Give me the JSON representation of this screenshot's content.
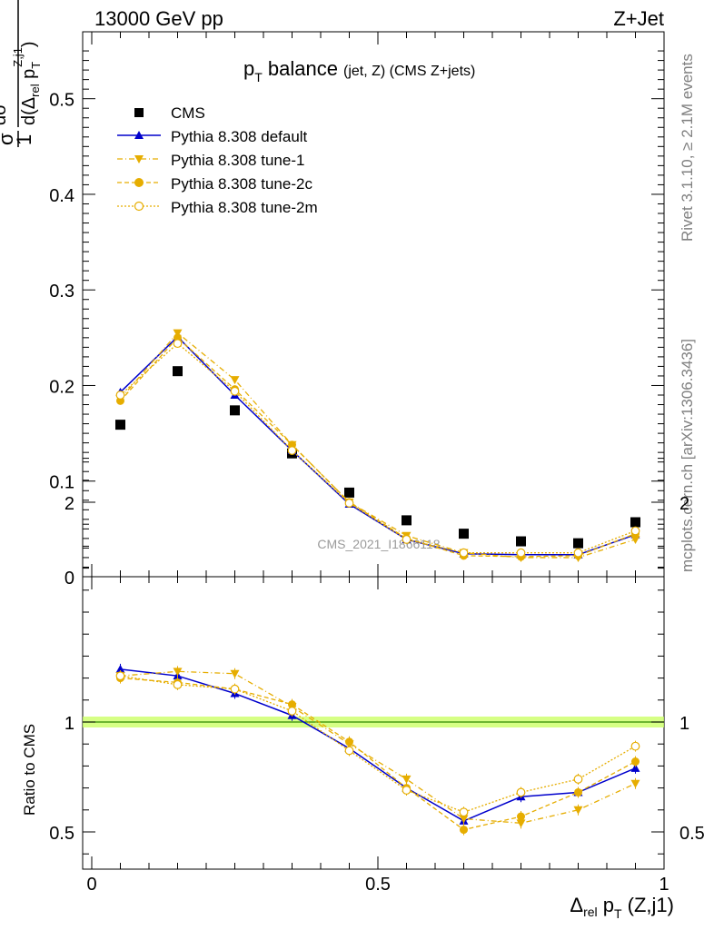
{
  "header": {
    "energy_label": "13000 GeV pp",
    "process_label": "Z+Jet"
  },
  "side_labels": {
    "rivet": "Rivet 3.1.10, ≥ 2.1M events",
    "mcplots": "mcplots.cern.ch [arXiv:1306.3436]"
  },
  "watermark": "CMS_2021_I1866118",
  "colors": {
    "data": "#000000",
    "default": "#0000cc",
    "tune": "#e6ad00",
    "band": "#ccff66",
    "refline": "#2e8b00"
  },
  "chart_data": [
    {
      "type": "scatter",
      "panel": "main",
      "title": "p_T balance (jet, Z) (CMS Z+jets)",
      "title_main": "p",
      "title_sub": "T",
      "title_rest": " balance",
      "title_small": "(jet, Z) (CMS Z+jets)",
      "xlabel": "Δrel pT (Z,j1)",
      "ylabel": "1/σ dσ/d(Δrel pT Z,j1)",
      "xlim": [
        0,
        1
      ],
      "ylim": [
        0,
        0.57
      ],
      "y_ticks": [
        "0",
        "0.1",
        "0.2",
        "0.3",
        "0.4",
        "0.5"
      ],
      "x": [
        0.05,
        0.15,
        0.25,
        0.35,
        0.45,
        0.55,
        0.65,
        0.75,
        0.85,
        0.95
      ],
      "legend_position": "top-left",
      "series": [
        {
          "name": "CMS",
          "key": "data",
          "marker": "square",
          "values": [
            0.159,
            0.215,
            0.174,
            0.129,
            0.088,
            0.059,
            0.045,
            0.037,
            0.035,
            0.057
          ]
        },
        {
          "name": "Pythia 8.308 default",
          "key": "default",
          "marker": "triangle-up",
          "line": "solid",
          "values": [
            0.193,
            0.251,
            0.19,
            0.132,
            0.076,
            0.039,
            0.024,
            0.023,
            0.023,
            0.044
          ]
        },
        {
          "name": "Pythia 8.308 tune-1",
          "key": "tune1",
          "marker": "triangle-down",
          "line": "dashdot",
          "values": [
            0.186,
            0.255,
            0.206,
            0.138,
            0.078,
            0.043,
            0.025,
            0.02,
            0.02,
            0.039
          ]
        },
        {
          "name": "Pythia 8.308 tune-2c",
          "key": "tune2c",
          "marker": "circle",
          "line": "dashed",
          "values": [
            0.184,
            0.25,
            0.196,
            0.138,
            0.078,
            0.04,
            0.022,
            0.021,
            0.022,
            0.045
          ]
        },
        {
          "name": "Pythia 8.308 tune-2m",
          "key": "tune2m",
          "marker": "circle-open",
          "line": "dotted",
          "values": [
            0.19,
            0.244,
            0.194,
            0.132,
            0.077,
            0.039,
            0.025,
            0.025,
            0.025,
            0.048
          ]
        }
      ]
    },
    {
      "type": "line",
      "panel": "ratio",
      "ylabel": "Ratio to CMS",
      "xlim": [
        0,
        1
      ],
      "ylim": [
        0.34,
        2.24
      ],
      "y_ticks": [
        "0.5",
        "1",
        "2"
      ],
      "x_ticks": [
        "0",
        "0.5",
        "1"
      ],
      "x": [
        0.05,
        0.15,
        0.25,
        0.35,
        0.45,
        0.55,
        0.65,
        0.75,
        0.85,
        0.95
      ],
      "series": [
        {
          "name": "Pythia 8.308 default",
          "key": "default",
          "values": [
            1.24,
            1.21,
            1.13,
            1.03,
            0.88,
            0.7,
            0.55,
            0.66,
            0.68,
            0.79
          ]
        },
        {
          "name": "Pythia 8.308 tune-1",
          "key": "tune1",
          "values": [
            1.21,
            1.23,
            1.22,
            1.07,
            0.9,
            0.74,
            0.56,
            0.54,
            0.6,
            0.72
          ]
        },
        {
          "name": "Pythia 8.308 tune-2c",
          "key": "tune2c",
          "values": [
            1.2,
            1.18,
            1.15,
            1.08,
            0.91,
            0.7,
            0.51,
            0.57,
            0.68,
            0.82
          ]
        },
        {
          "name": "Pythia 8.308 tune-2m",
          "key": "tune2m",
          "values": [
            1.21,
            1.17,
            1.15,
            1.05,
            0.87,
            0.69,
            0.59,
            0.68,
            0.74,
            0.89
          ]
        }
      ]
    }
  ]
}
